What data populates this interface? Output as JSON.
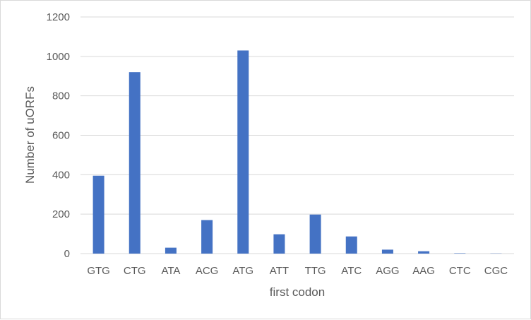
{
  "chart_data": {
    "type": "bar",
    "title": "",
    "xlabel": "first codon",
    "ylabel": "Number of uORFs",
    "categories": [
      "GTG",
      "CTG",
      "ATA",
      "ACG",
      "ATG",
      "ATT",
      "TTG",
      "ATC",
      "AGG",
      "AAG",
      "CTC",
      "CGC"
    ],
    "values": [
      395,
      920,
      30,
      170,
      1030,
      98,
      198,
      87,
      20,
      12,
      2,
      1
    ],
    "ylim": [
      0,
      1200
    ],
    "yticks": [
      "0",
      "200",
      "400",
      "600",
      "800",
      "1000",
      "1200"
    ],
    "grid": true,
    "legend": "none",
    "bar_color": "#4472c4",
    "grid_color": "#d9d9d9"
  }
}
